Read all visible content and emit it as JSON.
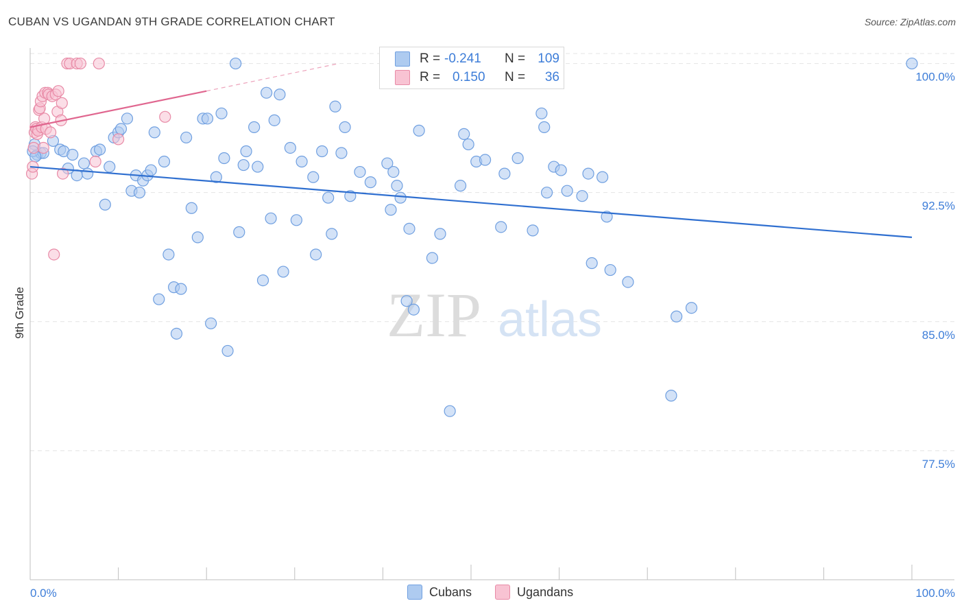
{
  "header": {
    "title": "CUBAN VS UGANDAN 9TH GRADE CORRELATION CHART",
    "source": "Source: ZipAtlas.com"
  },
  "watermark": {
    "zip": "ZIP",
    "atlas": "atlas"
  },
  "legend": {
    "rows": [
      {
        "r_label": "R =",
        "r_value": "-0.241",
        "n_label": "N =",
        "n_value": "109",
        "color": "#aecbf0",
        "border": "#6f9fe0"
      },
      {
        "r_label": "R =",
        "r_value": "0.150",
        "n_label": "N =",
        "n_value": "36",
        "color": "#f8c3d3",
        "border": "#e88aa6"
      }
    ],
    "bottom": [
      {
        "label": "Cubans",
        "color": "#aecbf0",
        "border": "#6f9fe0"
      },
      {
        "label": "Ugandans",
        "color": "#f8c3d3",
        "border": "#e88aa6"
      }
    ]
  },
  "chart_data": {
    "type": "scatter",
    "title": "CUBAN VS UGANDAN 9TH GRADE CORRELATION CHART",
    "ylabel": "9th Grade",
    "xlabel": "",
    "x_tick_labels": [
      "0.0%",
      "100.0%"
    ],
    "y_tick_labels": [
      "100.0%",
      "92.5%",
      "85.0%",
      "77.5%"
    ],
    "y_ticks": [
      100.0,
      92.5,
      85.0,
      77.5
    ],
    "xlim": [
      0,
      100
    ],
    "ylim": [
      70.0,
      100.9
    ],
    "grid": true,
    "legend_position": "top-center",
    "series": [
      {
        "name": "Cubans",
        "color": "#6f9fe0",
        "fill": "#aecbf0",
        "trend": {
          "x": [
            0,
            100
          ],
          "y": [
            94.0,
            89.9
          ]
        },
        "points": [
          [
            0.5,
            95.3
          ],
          [
            0.8,
            94.7
          ],
          [
            1.2,
            94.8
          ],
          [
            1.5,
            94.8
          ],
          [
            2.6,
            95.5
          ],
          [
            3.4,
            95.0
          ],
          [
            3.8,
            94.9
          ],
          [
            4.3,
            93.9
          ],
          [
            4.8,
            94.7
          ],
          [
            5.3,
            93.5
          ],
          [
            6.1,
            94.2
          ],
          [
            6.5,
            93.6
          ],
          [
            7.5,
            94.9
          ],
          [
            7.9,
            95.0
          ],
          [
            8.5,
            91.8
          ],
          [
            9.0,
            94.0
          ],
          [
            9.5,
            95.7
          ],
          [
            10.0,
            96.0
          ],
          [
            10.3,
            96.2
          ],
          [
            11.0,
            96.8
          ],
          [
            11.5,
            92.6
          ],
          [
            12.0,
            93.5
          ],
          [
            12.4,
            92.5
          ],
          [
            12.8,
            93.2
          ],
          [
            13.3,
            93.5
          ],
          [
            13.7,
            93.8
          ],
          [
            14.1,
            96.0
          ],
          [
            14.6,
            86.3
          ],
          [
            15.2,
            94.3
          ],
          [
            15.7,
            88.9
          ],
          [
            16.3,
            87.0
          ],
          [
            16.6,
            84.3
          ],
          [
            17.1,
            86.9
          ],
          [
            17.7,
            95.7
          ],
          [
            18.3,
            91.6
          ],
          [
            19.0,
            89.9
          ],
          [
            19.6,
            96.8
          ],
          [
            20.1,
            96.8
          ],
          [
            20.5,
            84.9
          ],
          [
            21.1,
            93.4
          ],
          [
            21.7,
            97.1
          ],
          [
            22.0,
            94.5
          ],
          [
            22.4,
            83.3
          ],
          [
            23.3,
            100.0
          ],
          [
            23.7,
            90.2
          ],
          [
            24.2,
            94.1
          ],
          [
            24.5,
            94.9
          ],
          [
            25.4,
            96.3
          ],
          [
            25.8,
            94.0
          ],
          [
            26.4,
            87.4
          ],
          [
            26.8,
            98.3
          ],
          [
            27.3,
            91.0
          ],
          [
            27.7,
            96.7
          ],
          [
            28.3,
            98.2
          ],
          [
            28.7,
            87.9
          ],
          [
            29.5,
            95.1
          ],
          [
            30.2,
            90.9
          ],
          [
            30.8,
            94.3
          ],
          [
            32.1,
            93.4
          ],
          [
            32.4,
            88.9
          ],
          [
            33.1,
            94.9
          ],
          [
            33.8,
            92.2
          ],
          [
            34.2,
            90.1
          ],
          [
            34.6,
            97.5
          ],
          [
            35.3,
            94.8
          ],
          [
            35.7,
            96.3
          ],
          [
            36.3,
            92.3
          ],
          [
            37.4,
            93.7
          ],
          [
            38.6,
            93.1
          ],
          [
            40.5,
            94.2
          ],
          [
            40.9,
            91.5
          ],
          [
            41.2,
            93.7
          ],
          [
            41.6,
            92.9
          ],
          [
            42.0,
            92.2
          ],
          [
            42.7,
            86.2
          ],
          [
            43.0,
            90.4
          ],
          [
            43.5,
            85.7
          ],
          [
            44.1,
            96.1
          ],
          [
            45.6,
            88.7
          ],
          [
            46.5,
            90.1
          ],
          [
            47.6,
            79.8
          ],
          [
            48.8,
            92.9
          ],
          [
            49.2,
            95.9
          ],
          [
            49.7,
            95.3
          ],
          [
            50.6,
            94.3
          ],
          [
            51.6,
            94.4
          ],
          [
            53.4,
            90.5
          ],
          [
            53.8,
            93.6
          ],
          [
            55.3,
            94.5
          ],
          [
            57.0,
            90.3
          ],
          [
            58.0,
            97.1
          ],
          [
            58.3,
            96.3
          ],
          [
            58.6,
            92.5
          ],
          [
            59.4,
            94.0
          ],
          [
            60.2,
            93.8
          ],
          [
            60.9,
            92.6
          ],
          [
            62.6,
            92.3
          ],
          [
            63.3,
            93.6
          ],
          [
            63.7,
            88.4
          ],
          [
            64.9,
            93.4
          ],
          [
            65.4,
            91.1
          ],
          [
            65.8,
            88.0
          ],
          [
            67.8,
            87.3
          ],
          [
            72.7,
            80.7
          ],
          [
            73.3,
            85.3
          ],
          [
            75.0,
            85.8
          ],
          [
            100.0,
            100.0
          ],
          [
            0.3,
            94.9
          ],
          [
            0.6,
            94.6
          ]
        ]
      },
      {
        "name": "Ugandans",
        "color": "#e88aa6",
        "fill": "#f8c3d3",
        "trend": {
          "x": [
            0,
            20
          ],
          "y": [
            96.3,
            98.4
          ]
        },
        "trend_dashed": {
          "x": [
            20,
            35
          ],
          "y": [
            98.4,
            100.0
          ]
        },
        "points": [
          [
            0.2,
            93.6
          ],
          [
            0.3,
            94.0
          ],
          [
            0.4,
            95.1
          ],
          [
            0.5,
            96.0
          ],
          [
            0.6,
            96.3
          ],
          [
            0.7,
            96.2
          ],
          [
            0.8,
            95.9
          ],
          [
            0.9,
            96.1
          ],
          [
            1.0,
            97.3
          ],
          [
            1.1,
            97.4
          ],
          [
            1.2,
            97.8
          ],
          [
            1.3,
            96.3
          ],
          [
            1.4,
            98.1
          ],
          [
            1.5,
            95.1
          ],
          [
            1.6,
            96.8
          ],
          [
            1.7,
            98.3
          ],
          [
            1.8,
            96.2
          ],
          [
            2.0,
            98.3
          ],
          [
            2.1,
            98.2
          ],
          [
            2.3,
            96.0
          ],
          [
            2.5,
            98.1
          ],
          [
            2.7,
            88.9
          ],
          [
            2.9,
            98.2
          ],
          [
            3.1,
            97.2
          ],
          [
            3.2,
            98.4
          ],
          [
            3.5,
            96.7
          ],
          [
            3.6,
            97.7
          ],
          [
            3.7,
            93.6
          ],
          [
            4.2,
            100.0
          ],
          [
            4.5,
            100.0
          ],
          [
            5.3,
            100.0
          ],
          [
            5.7,
            100.0
          ],
          [
            7.4,
            94.3
          ],
          [
            7.8,
            100.0
          ],
          [
            10.0,
            95.6
          ],
          [
            15.3,
            96.9
          ]
        ]
      }
    ]
  }
}
